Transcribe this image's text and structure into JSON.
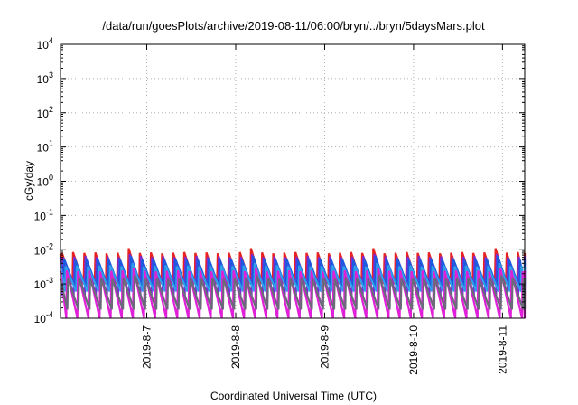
{
  "chart_data": {
    "type": "line",
    "title": "/data/run/goesPlots/archive/2019-08-11/06:00/bryn/../bryn/5daysMars.plot",
    "xlabel": "Coordinated Universal Time (UTC)",
    "ylabel": "cGy/day",
    "y_scale": "log",
    "ylim": [
      0.0001,
      10000
    ],
    "xlim": [
      "2019-08-06 00:43",
      "2019-08-11 06:00"
    ],
    "y_ticks": [
      {
        "base": "10",
        "exp": "-4",
        "value": 0.0001
      },
      {
        "base": "10",
        "exp": "-3",
        "value": 0.001
      },
      {
        "base": "10",
        "exp": "-2",
        "value": 0.01
      },
      {
        "base": "10",
        "exp": "-1",
        "value": 0.1
      },
      {
        "base": "10",
        "exp": "0",
        "value": 1
      },
      {
        "base": "10",
        "exp": "1",
        "value": 10
      },
      {
        "base": "10",
        "exp": "2",
        "value": 100
      },
      {
        "base": "10",
        "exp": "3",
        "value": 1000
      },
      {
        "base": "10",
        "exp": "4",
        "value": 10000
      }
    ],
    "x_ticks": [
      {
        "label": "2019-8-7",
        "date": "2019-08-07 00:00"
      },
      {
        "label": "2019-8-8",
        "date": "2019-08-08 00:00"
      },
      {
        "label": "2019-8-9",
        "date": "2019-08-09 00:00"
      },
      {
        "label": "2019-8-10",
        "date": "2019-08-10 00:00"
      },
      {
        "label": "2019-8-11",
        "date": "2019-08-11 00:00"
      }
    ],
    "grid": true,
    "legend": "none",
    "series": [
      {
        "color": "#e8231f",
        "period_hours": 3,
        "peak": 0.0085,
        "trough": 0.001,
        "phase_hours": 0.4,
        "peak_max": 0.011
      },
      {
        "color": "#7a2bd6",
        "period_hours": 3,
        "peak": 0.0065,
        "trough": 0.00045,
        "phase_hours": 0.7,
        "peak_max": 0.0075
      },
      {
        "color": "#1e5ae0",
        "period_hours": 3,
        "peak": 0.0055,
        "trough": 0.0008,
        "phase_hours": 1.0,
        "peak_max": 0.0065
      },
      {
        "color": "#2e9fe8",
        "period_hours": 3,
        "peak": 0.0035,
        "trough": 0.0006,
        "phase_hours": 1.4,
        "peak_max": 0.004
      },
      {
        "color": "#e020d8",
        "period_hours": 3,
        "peak": 0.0025,
        "trough": 0.0001,
        "phase_hours": 1.7,
        "peak_max": 0.003
      },
      {
        "color": "#6a6a7a",
        "period_hours": 3,
        "peak": 0.0015,
        "trough": 0.00018,
        "phase_hours": 2.0,
        "peak_max": 0.0018
      }
    ]
  }
}
